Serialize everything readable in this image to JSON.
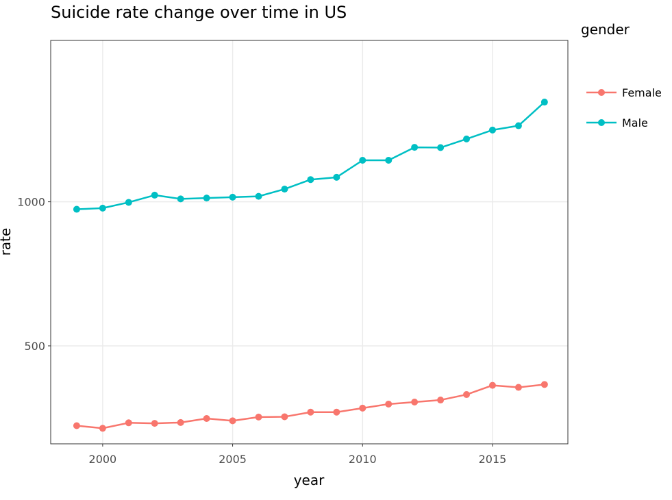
{
  "chart_data": {
    "type": "line",
    "title": "Suicide rate change over time in US",
    "xlabel": "year",
    "ylabel": "rate",
    "xlim": [
      1998,
      2017.9
    ],
    "ylim": [
      160,
      1560
    ],
    "x_ticks": [
      2000,
      2005,
      2010,
      2015
    ],
    "y_ticks": [
      500,
      1000
    ],
    "x_tick_labels": [
      "2000",
      "2005",
      "2010",
      "2015"
    ],
    "y_tick_labels": [
      "500",
      "1000"
    ],
    "grid": true,
    "legend": {
      "title": "gender",
      "position": "right"
    },
    "x": [
      1999,
      2000,
      2001,
      2002,
      2003,
      2004,
      2005,
      2006,
      2007,
      2008,
      2009,
      2010,
      2011,
      2012,
      2013,
      2014,
      2015,
      2016,
      2017
    ],
    "series": [
      {
        "name": "Female",
        "color": "#f8766d",
        "values": [
          223,
          214,
          233,
          231,
          234,
          248,
          240,
          253,
          254,
          270,
          270,
          284,
          298,
          305,
          312,
          331,
          363,
          356,
          366
        ]
      },
      {
        "name": "Male",
        "color": "#00bfc4",
        "values": [
          974,
          978,
          998,
          1023,
          1010,
          1013,
          1016,
          1019,
          1044,
          1077,
          1085,
          1144,
          1144,
          1189,
          1188,
          1218,
          1249,
          1264,
          1346
        ]
      }
    ]
  }
}
